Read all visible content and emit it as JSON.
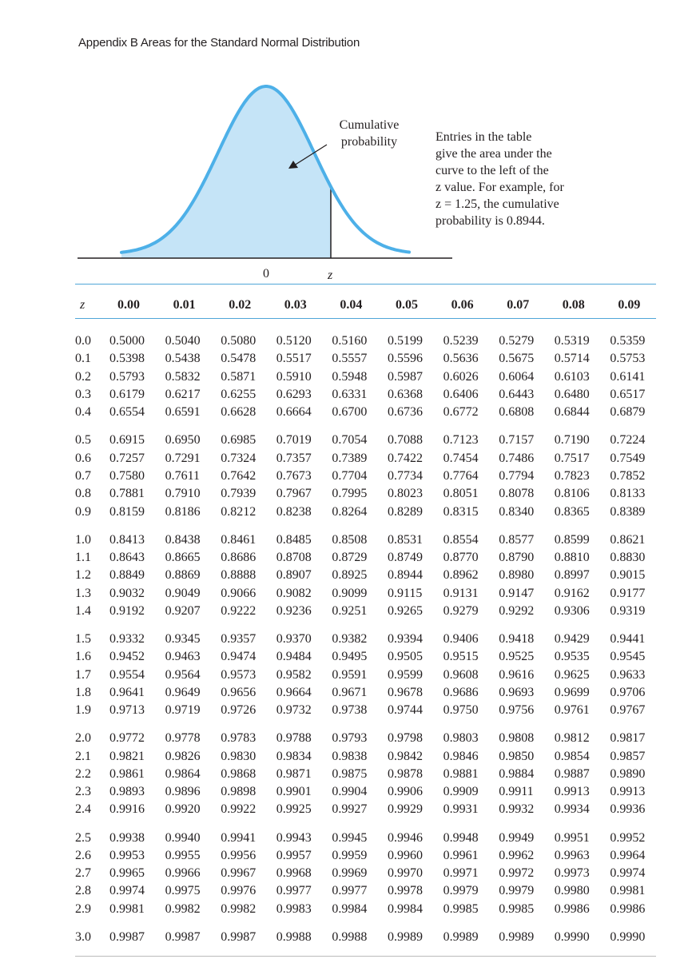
{
  "header": {
    "title": "Appendix B  Areas for the Standard Normal Distribution"
  },
  "figure": {
    "callout": [
      "Cumulative",
      "probability"
    ],
    "note_lines": [
      "Entries in the table",
      "give the area under the",
      "curve to the left of the",
      "z value. For example, for",
      "z = 1.25, the cumulative",
      "probability is 0.8944."
    ],
    "axis_zero": "0",
    "axis_z": "z",
    "curve_color": "#4db0e8",
    "fill_color": "#c5e4f7"
  },
  "table": {
    "z_header": "z",
    "columns": [
      "0.00",
      "0.01",
      "0.02",
      "0.03",
      "0.04",
      "0.05",
      "0.06",
      "0.07",
      "0.08",
      "0.09"
    ],
    "rows": [
      {
        "z": "0.0",
        "v": [
          "0.5000",
          "0.5040",
          "0.5080",
          "0.5120",
          "0.5160",
          "0.5199",
          "0.5239",
          "0.5279",
          "0.5319",
          "0.5359"
        ]
      },
      {
        "z": "0.1",
        "v": [
          "0.5398",
          "0.5438",
          "0.5478",
          "0.5517",
          "0.5557",
          "0.5596",
          "0.5636",
          "0.5675",
          "0.5714",
          "0.5753"
        ]
      },
      {
        "z": "0.2",
        "v": [
          "0.5793",
          "0.5832",
          "0.5871",
          "0.5910",
          "0.5948",
          "0.5987",
          "0.6026",
          "0.6064",
          "0.6103",
          "0.6141"
        ]
      },
      {
        "z": "0.3",
        "v": [
          "0.6179",
          "0.6217",
          "0.6255",
          "0.6293",
          "0.6331",
          "0.6368",
          "0.6406",
          "0.6443",
          "0.6480",
          "0.6517"
        ]
      },
      {
        "z": "0.4",
        "v": [
          "0.6554",
          "0.6591",
          "0.6628",
          "0.6664",
          "0.6700",
          "0.6736",
          "0.6772",
          "0.6808",
          "0.6844",
          "0.6879"
        ]
      },
      {
        "z": "0.5",
        "v": [
          "0.6915",
          "0.6950",
          "0.6985",
          "0.7019",
          "0.7054",
          "0.7088",
          "0.7123",
          "0.7157",
          "0.7190",
          "0.7224"
        ]
      },
      {
        "z": "0.6",
        "v": [
          "0.7257",
          "0.7291",
          "0.7324",
          "0.7357",
          "0.7389",
          "0.7422",
          "0.7454",
          "0.7486",
          "0.7517",
          "0.7549"
        ]
      },
      {
        "z": "0.7",
        "v": [
          "0.7580",
          "0.7611",
          "0.7642",
          "0.7673",
          "0.7704",
          "0.7734",
          "0.7764",
          "0.7794",
          "0.7823",
          "0.7852"
        ]
      },
      {
        "z": "0.8",
        "v": [
          "0.7881",
          "0.7910",
          "0.7939",
          "0.7967",
          "0.7995",
          "0.8023",
          "0.8051",
          "0.8078",
          "0.8106",
          "0.8133"
        ]
      },
      {
        "z": "0.9",
        "v": [
          "0.8159",
          "0.8186",
          "0.8212",
          "0.8238",
          "0.8264",
          "0.8289",
          "0.8315",
          "0.8340",
          "0.8365",
          "0.8389"
        ]
      },
      {
        "z": "1.0",
        "v": [
          "0.8413",
          "0.8438",
          "0.8461",
          "0.8485",
          "0.8508",
          "0.8531",
          "0.8554",
          "0.8577",
          "0.8599",
          "0.8621"
        ]
      },
      {
        "z": "1.1",
        "v": [
          "0.8643",
          "0.8665",
          "0.8686",
          "0.8708",
          "0.8729",
          "0.8749",
          "0.8770",
          "0.8790",
          "0.8810",
          "0.8830"
        ]
      },
      {
        "z": "1.2",
        "v": [
          "0.8849",
          "0.8869",
          "0.8888",
          "0.8907",
          "0.8925",
          "0.8944",
          "0.8962",
          "0.8980",
          "0.8997",
          "0.9015"
        ]
      },
      {
        "z": "1.3",
        "v": [
          "0.9032",
          "0.9049",
          "0.9066",
          "0.9082",
          "0.9099",
          "0.9115",
          "0.9131",
          "0.9147",
          "0.9162",
          "0.9177"
        ]
      },
      {
        "z": "1.4",
        "v": [
          "0.9192",
          "0.9207",
          "0.9222",
          "0.9236",
          "0.9251",
          "0.9265",
          "0.9279",
          "0.9292",
          "0.9306",
          "0.9319"
        ]
      },
      {
        "z": "1.5",
        "v": [
          "0.9332",
          "0.9345",
          "0.9357",
          "0.9370",
          "0.9382",
          "0.9394",
          "0.9406",
          "0.9418",
          "0.9429",
          "0.9441"
        ]
      },
      {
        "z": "1.6",
        "v": [
          "0.9452",
          "0.9463",
          "0.9474",
          "0.9484",
          "0.9495",
          "0.9505",
          "0.9515",
          "0.9525",
          "0.9535",
          "0.9545"
        ]
      },
      {
        "z": "1.7",
        "v": [
          "0.9554",
          "0.9564",
          "0.9573",
          "0.9582",
          "0.9591",
          "0.9599",
          "0.9608",
          "0.9616",
          "0.9625",
          "0.9633"
        ]
      },
      {
        "z": "1.8",
        "v": [
          "0.9641",
          "0.9649",
          "0.9656",
          "0.9664",
          "0.9671",
          "0.9678",
          "0.9686",
          "0.9693",
          "0.9699",
          "0.9706"
        ]
      },
      {
        "z": "1.9",
        "v": [
          "0.9713",
          "0.9719",
          "0.9726",
          "0.9732",
          "0.9738",
          "0.9744",
          "0.9750",
          "0.9756",
          "0.9761",
          "0.9767"
        ]
      },
      {
        "z": "2.0",
        "v": [
          "0.9772",
          "0.9778",
          "0.9783",
          "0.9788",
          "0.9793",
          "0.9798",
          "0.9803",
          "0.9808",
          "0.9812",
          "0.9817"
        ]
      },
      {
        "z": "2.1",
        "v": [
          "0.9821",
          "0.9826",
          "0.9830",
          "0.9834",
          "0.9838",
          "0.9842",
          "0.9846",
          "0.9850",
          "0.9854",
          "0.9857"
        ]
      },
      {
        "z": "2.2",
        "v": [
          "0.9861",
          "0.9864",
          "0.9868",
          "0.9871",
          "0.9875",
          "0.9878",
          "0.9881",
          "0.9884",
          "0.9887",
          "0.9890"
        ]
      },
      {
        "z": "2.3",
        "v": [
          "0.9893",
          "0.9896",
          "0.9898",
          "0.9901",
          "0.9904",
          "0.9906",
          "0.9909",
          "0.9911",
          "0.9913",
          "0.9913"
        ]
      },
      {
        "z": "2.4",
        "v": [
          "0.9916",
          "0.9920",
          "0.9922",
          "0.9925",
          "0.9927",
          "0.9929",
          "0.9931",
          "0.9932",
          "0.9934",
          "0.9936"
        ]
      },
      {
        "z": "2.5",
        "v": [
          "0.9938",
          "0.9940",
          "0.9941",
          "0.9943",
          "0.9945",
          "0.9946",
          "0.9948",
          "0.9949",
          "0.9951",
          "0.9952"
        ]
      },
      {
        "z": "2.6",
        "v": [
          "0.9953",
          "0.9955",
          "0.9956",
          "0.9957",
          "0.9959",
          "0.9960",
          "0.9961",
          "0.9962",
          "0.9963",
          "0.9964"
        ]
      },
      {
        "z": "2.7",
        "v": [
          "0.9965",
          "0.9966",
          "0.9967",
          "0.9968",
          "0.9969",
          "0.9970",
          "0.9971",
          "0.9972",
          "0.9973",
          "0.9974"
        ]
      },
      {
        "z": "2.8",
        "v": [
          "0.9974",
          "0.9975",
          "0.9976",
          "0.9977",
          "0.9977",
          "0.9978",
          "0.9979",
          "0.9979",
          "0.9980",
          "0.9981"
        ]
      },
      {
        "z": "2.9",
        "v": [
          "0.9981",
          "0.9982",
          "0.9982",
          "0.9983",
          "0.9984",
          "0.9984",
          "0.9985",
          "0.9985",
          "0.9986",
          "0.9986"
        ]
      },
      {
        "z": "3.0",
        "v": [
          "0.9987",
          "0.9987",
          "0.9987",
          "0.9988",
          "0.9988",
          "0.9989",
          "0.9989",
          "0.9989",
          "0.9990",
          "0.9990"
        ]
      }
    ]
  }
}
